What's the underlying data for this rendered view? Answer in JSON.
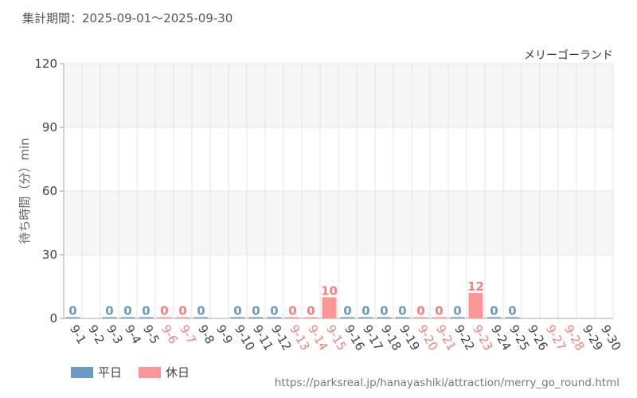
{
  "header": {
    "period": "集計期間：2025-09-01～2025-09-30"
  },
  "footer": {
    "url": "https://parksreal.jp/hanayashiki/attraction/merry_go_round.html"
  },
  "colors": {
    "weekday": "#6b9ac4",
    "holiday": "#fd9696",
    "holiday_text": "#f08080",
    "label": "#6b9ac4"
  },
  "chart_data": {
    "type": "bar",
    "title": "メリーゴーランド",
    "ylabel": "待ち時間（分）min",
    "ylim": [
      0,
      120
    ],
    "yticks": [
      0,
      30,
      60,
      90,
      120
    ],
    "grid": true,
    "legend_position": "bottom-left",
    "categories": [
      "9-1",
      "9-2",
      "9-3",
      "9-4",
      "9-5",
      "9-6",
      "9-7",
      "9-8",
      "9-9",
      "9-10",
      "9-11",
      "9-12",
      "9-13",
      "9-14",
      "9-15",
      "9-16",
      "9-17",
      "9-18",
      "9-19",
      "9-20",
      "9-21",
      "9-22",
      "9-23",
      "9-24",
      "9-25",
      "9-26",
      "9-27",
      "9-28",
      "9-29",
      "9-30"
    ],
    "day_type": [
      "weekday",
      "weekday",
      "weekday",
      "weekday",
      "weekday",
      "holiday",
      "holiday",
      "weekday",
      "weekday",
      "weekday",
      "weekday",
      "weekday",
      "holiday",
      "holiday",
      "holiday",
      "weekday",
      "weekday",
      "weekday",
      "weekday",
      "holiday",
      "holiday",
      "weekday",
      "holiday",
      "weekday",
      "weekday",
      "weekday",
      "holiday",
      "holiday",
      "weekday",
      "weekday"
    ],
    "values": [
      0,
      null,
      0,
      0,
      0,
      0,
      0,
      0,
      null,
      0,
      0,
      0,
      0,
      0,
      10,
      0,
      0,
      0,
      0,
      0,
      0,
      0,
      12,
      0,
      0,
      null,
      null,
      null,
      null,
      null
    ],
    "series": [
      {
        "name": "平日"
      },
      {
        "name": "休日"
      }
    ]
  }
}
